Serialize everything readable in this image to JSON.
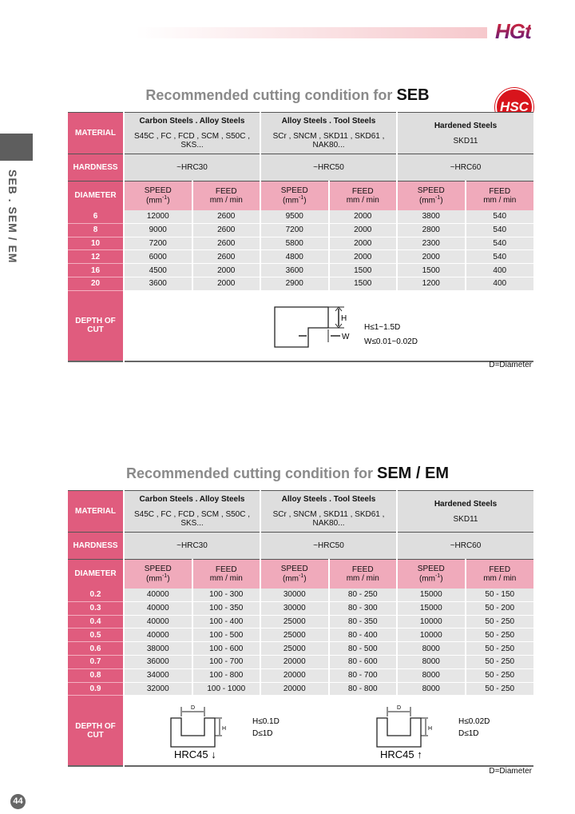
{
  "header": {
    "brand": "HGt"
  },
  "side_tab": "SEB . SEM / EM",
  "badge": "HSC",
  "page_number": "44",
  "tables": [
    {
      "title_prefix": "Recommended cutting condition for",
      "title_product": "SEB",
      "labels": {
        "material": "MATERIAL",
        "hardness": "HARDNESS",
        "diameter": "DIAMETER",
        "depth": "DEPTH OF CUT"
      },
      "materials": [
        {
          "name": "Carbon Steels . Alloy Steels",
          "grades": "S45C , FC , FCD , SCM , S50C , SKS..."
        },
        {
          "name": "Alloy  Steels . Tool Steels",
          "grades": "SCr , SNCM , SKD11 , SKD61 , NAK80..."
        },
        {
          "name": "Hardened Steels",
          "grades": "SKD11"
        }
      ],
      "hardness": [
        "~HRC30",
        "~HRC50",
        "~HRC60"
      ],
      "speed_label": "SPEED",
      "speed_unit": "(mm-1)",
      "feed_label": "FEED",
      "feed_unit": "mm / min",
      "rows": [
        [
          "6",
          "12000",
          "2600",
          "9500",
          "2000",
          "3800",
          "540"
        ],
        [
          "8",
          "9000",
          "2600",
          "7200",
          "2000",
          "2800",
          "540"
        ],
        [
          "10",
          "7200",
          "2600",
          "5800",
          "2000",
          "2300",
          "540"
        ],
        [
          "12",
          "6000",
          "2600",
          "4800",
          "2000",
          "2000",
          "540"
        ],
        [
          "16",
          "4500",
          "2000",
          "3600",
          "1500",
          "1500",
          "400"
        ],
        [
          "20",
          "3600",
          "2000",
          "2900",
          "1500",
          "1200",
          "400"
        ]
      ],
      "depth": {
        "h_label": "H",
        "w_label": "W",
        "line1": "H≤1~1.5D",
        "line2": "W≤0.01~0.02D"
      },
      "note": "D=Diameter"
    },
    {
      "title_prefix": "Recommended cutting condition for",
      "title_product": "SEM / EM",
      "labels": {
        "material": "MATERIAL",
        "hardness": "HARDNESS",
        "diameter": "DIAMETER",
        "depth": "DEPTH OF CUT"
      },
      "materials": [
        {
          "name": "Carbon Steels . Alloy Steels",
          "grades": "S45C , FC , FCD , SCM , S50C , SKS..."
        },
        {
          "name": "Alloy Steels . Tool Steels",
          "grades": "SCr , SNCM , SKD11 , SKD61 , NAK80..."
        },
        {
          "name": "Hardened Steels",
          "grades": "SKD11"
        }
      ],
      "hardness": [
        "~HRC30",
        "~HRC50",
        "~HRC60"
      ],
      "speed_label": "SPEED",
      "speed_unit": "(mm-1)",
      "feed_label": "FEED",
      "feed_unit": "mm / min",
      "rows": [
        [
          "0.2",
          "40000",
          "100 - 300",
          "30000",
          "80 - 250",
          "15000",
          "50 - 150"
        ],
        [
          "0.3",
          "40000",
          "100 - 350",
          "30000",
          "80 - 300",
          "15000",
          "50 - 200"
        ],
        [
          "0.4",
          "40000",
          "100 - 400",
          "25000",
          "80 - 350",
          "10000",
          "50 - 250"
        ],
        [
          "0.5",
          "40000",
          "100 - 500",
          "25000",
          "80 - 400",
          "10000",
          "50 - 250"
        ],
        [
          "0.6",
          "38000",
          "100 - 600",
          "25000",
          "80 - 500",
          "8000",
          "50 - 250"
        ],
        [
          "0.7",
          "36000",
          "100 - 700",
          "20000",
          "80 - 600",
          "8000",
          "50 - 250"
        ],
        [
          "0.8",
          "34000",
          "100 - 800",
          "20000",
          "80 - 700",
          "8000",
          "50 - 250"
        ],
        [
          "0.9",
          "32000",
          "100 - 1000",
          "20000",
          "80 - 800",
          "8000",
          "50 - 250"
        ]
      ],
      "depth": {
        "left": {
          "d_label": "D",
          "h_label": "H",
          "line1": "H≤0.1D",
          "line2": "D≤1D",
          "caption": "HRC45 ↓"
        },
        "right": {
          "d_label": "D",
          "h_label": "H",
          "line1": "H≤0.02D",
          "line2": "D≤1D",
          "caption": "HRC45 ↑"
        }
      },
      "note": "D=Diameter"
    }
  ]
}
